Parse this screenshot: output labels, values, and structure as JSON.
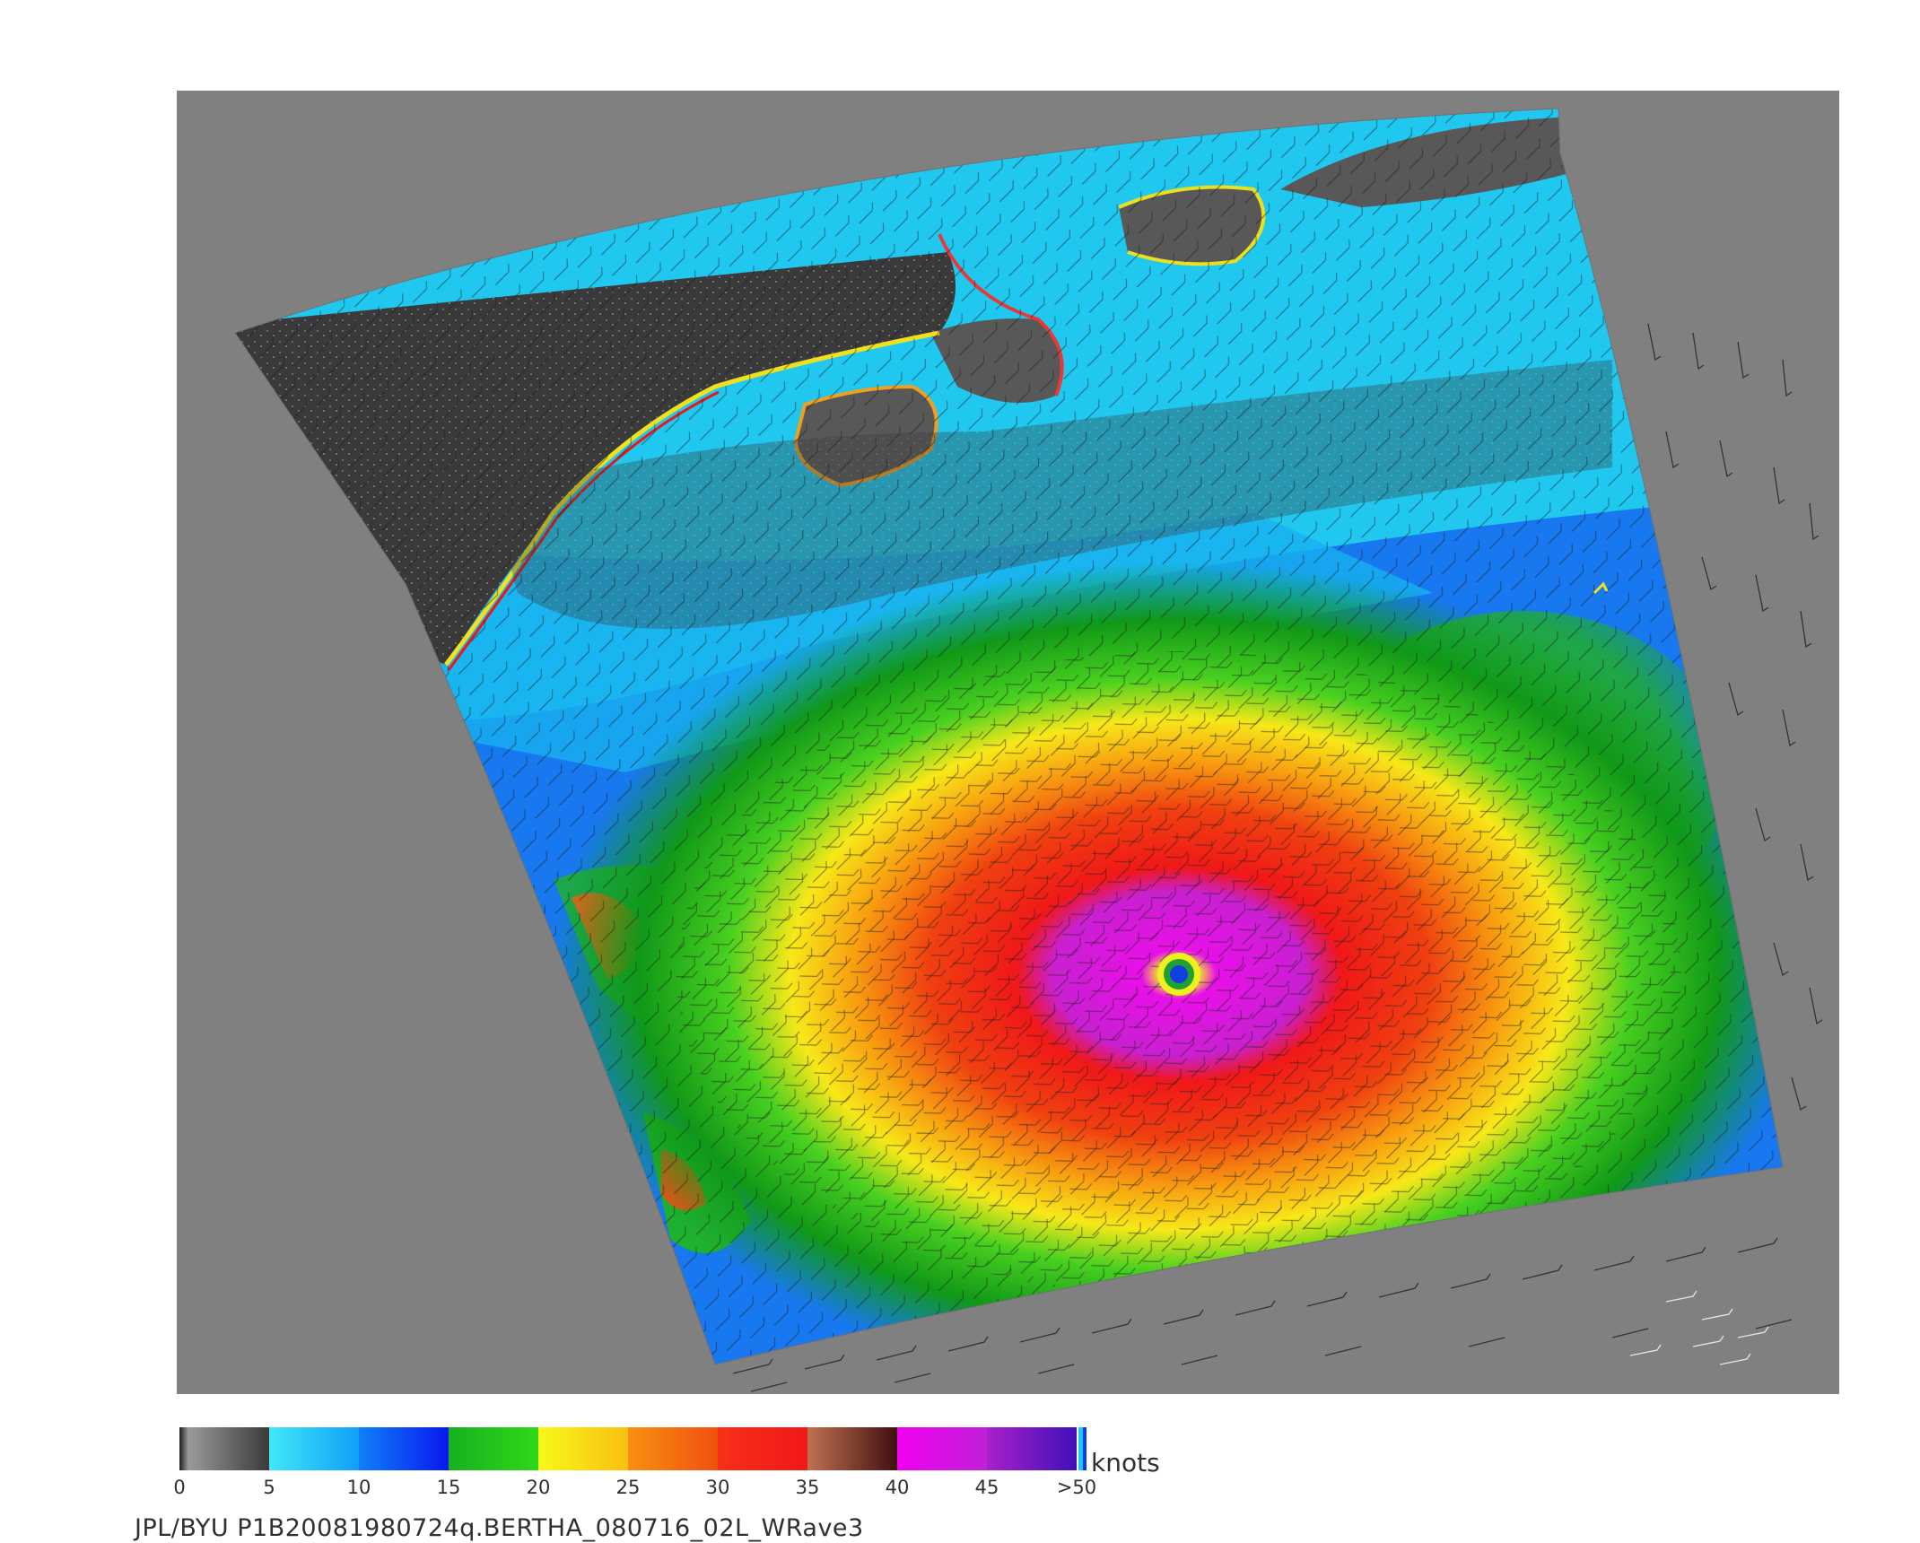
{
  "colorbar": {
    "units": "knots",
    "ticks": [
      "0",
      "5",
      "10",
      "15",
      "20",
      "25",
      "30",
      "35",
      "40",
      "45",
      ">50"
    ],
    "segments": [
      {
        "from": 0,
        "to": 5,
        "colors": [
          "#202020",
          "#9a9a9a",
          "#3a3a3a"
        ]
      },
      {
        "from": 5,
        "to": 10,
        "colors": [
          "#40e8f8",
          "#10a0f8"
        ]
      },
      {
        "from": 10,
        "to": 15,
        "colors": [
          "#1080f8",
          "#0818f0"
        ]
      },
      {
        "from": 15,
        "to": 20,
        "colors": [
          "#18b020",
          "#30d818"
        ]
      },
      {
        "from": 20,
        "to": 25,
        "colors": [
          "#f8f818",
          "#f8c010"
        ]
      },
      {
        "from": 25,
        "to": 30,
        "colors": [
          "#f89010",
          "#f05010"
        ]
      },
      {
        "from": 30,
        "to": 35,
        "colors": [
          "#f83018",
          "#f01818"
        ]
      },
      {
        "from": 35,
        "to": 40,
        "colors": [
          "#c07050",
          "#401010"
        ]
      },
      {
        "from": 40,
        "to": 45,
        "colors": [
          "#f000f0",
          "#c020d8"
        ]
      },
      {
        "from": 45,
        "to": 50,
        "colors": [
          "#a820c8",
          "#4010b8"
        ]
      }
    ]
  },
  "footer": {
    "text": "JPL/BYU  P1B20081980724q.BERTHA_080716_02L_WRave3"
  },
  "map": {
    "background_color": "#808080",
    "land_color": "#585858",
    "storm_eye": "visible",
    "features": [
      "wind barbs",
      "swath",
      "coastline"
    ]
  }
}
